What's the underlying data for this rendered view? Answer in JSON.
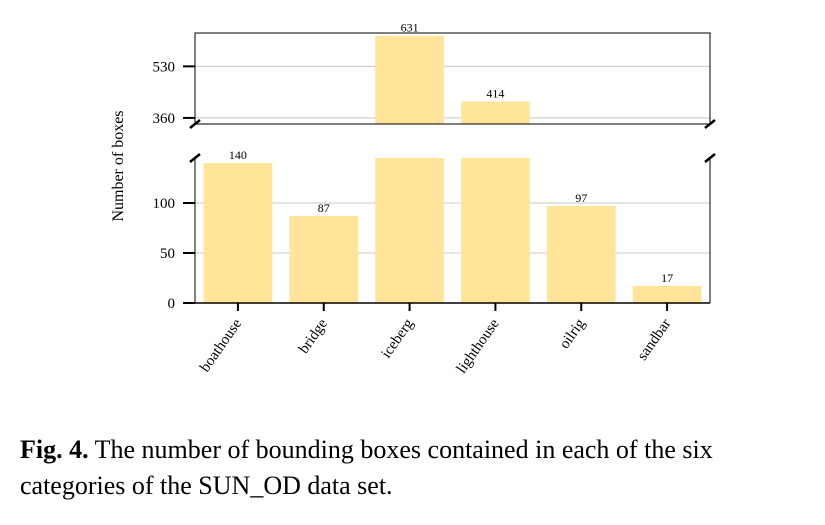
{
  "chart_data": {
    "type": "bar",
    "broken_axis": true,
    "categories": [
      "boathouse",
      "bridge",
      "iceberg",
      "lighthouse",
      "oilrig",
      "sandbar"
    ],
    "values": [
      140,
      87,
      631,
      414,
      97,
      17
    ],
    "value_labels": [
      "140",
      "87",
      "631",
      "414",
      "97",
      "17"
    ],
    "ylabel": "Number of boxes",
    "lower_ylim": [
      0,
      145
    ],
    "upper_ylim": [
      340,
      640
    ],
    "lower_yticks": [
      0,
      50,
      100
    ],
    "upper_yticks": [
      360,
      530
    ],
    "grid": true,
    "bar_color": "#ffe49a"
  },
  "caption": {
    "label": "Fig. 4.",
    "text": " The number of bounding boxes contained in each of the six categories of the SUN_OD data set."
  }
}
